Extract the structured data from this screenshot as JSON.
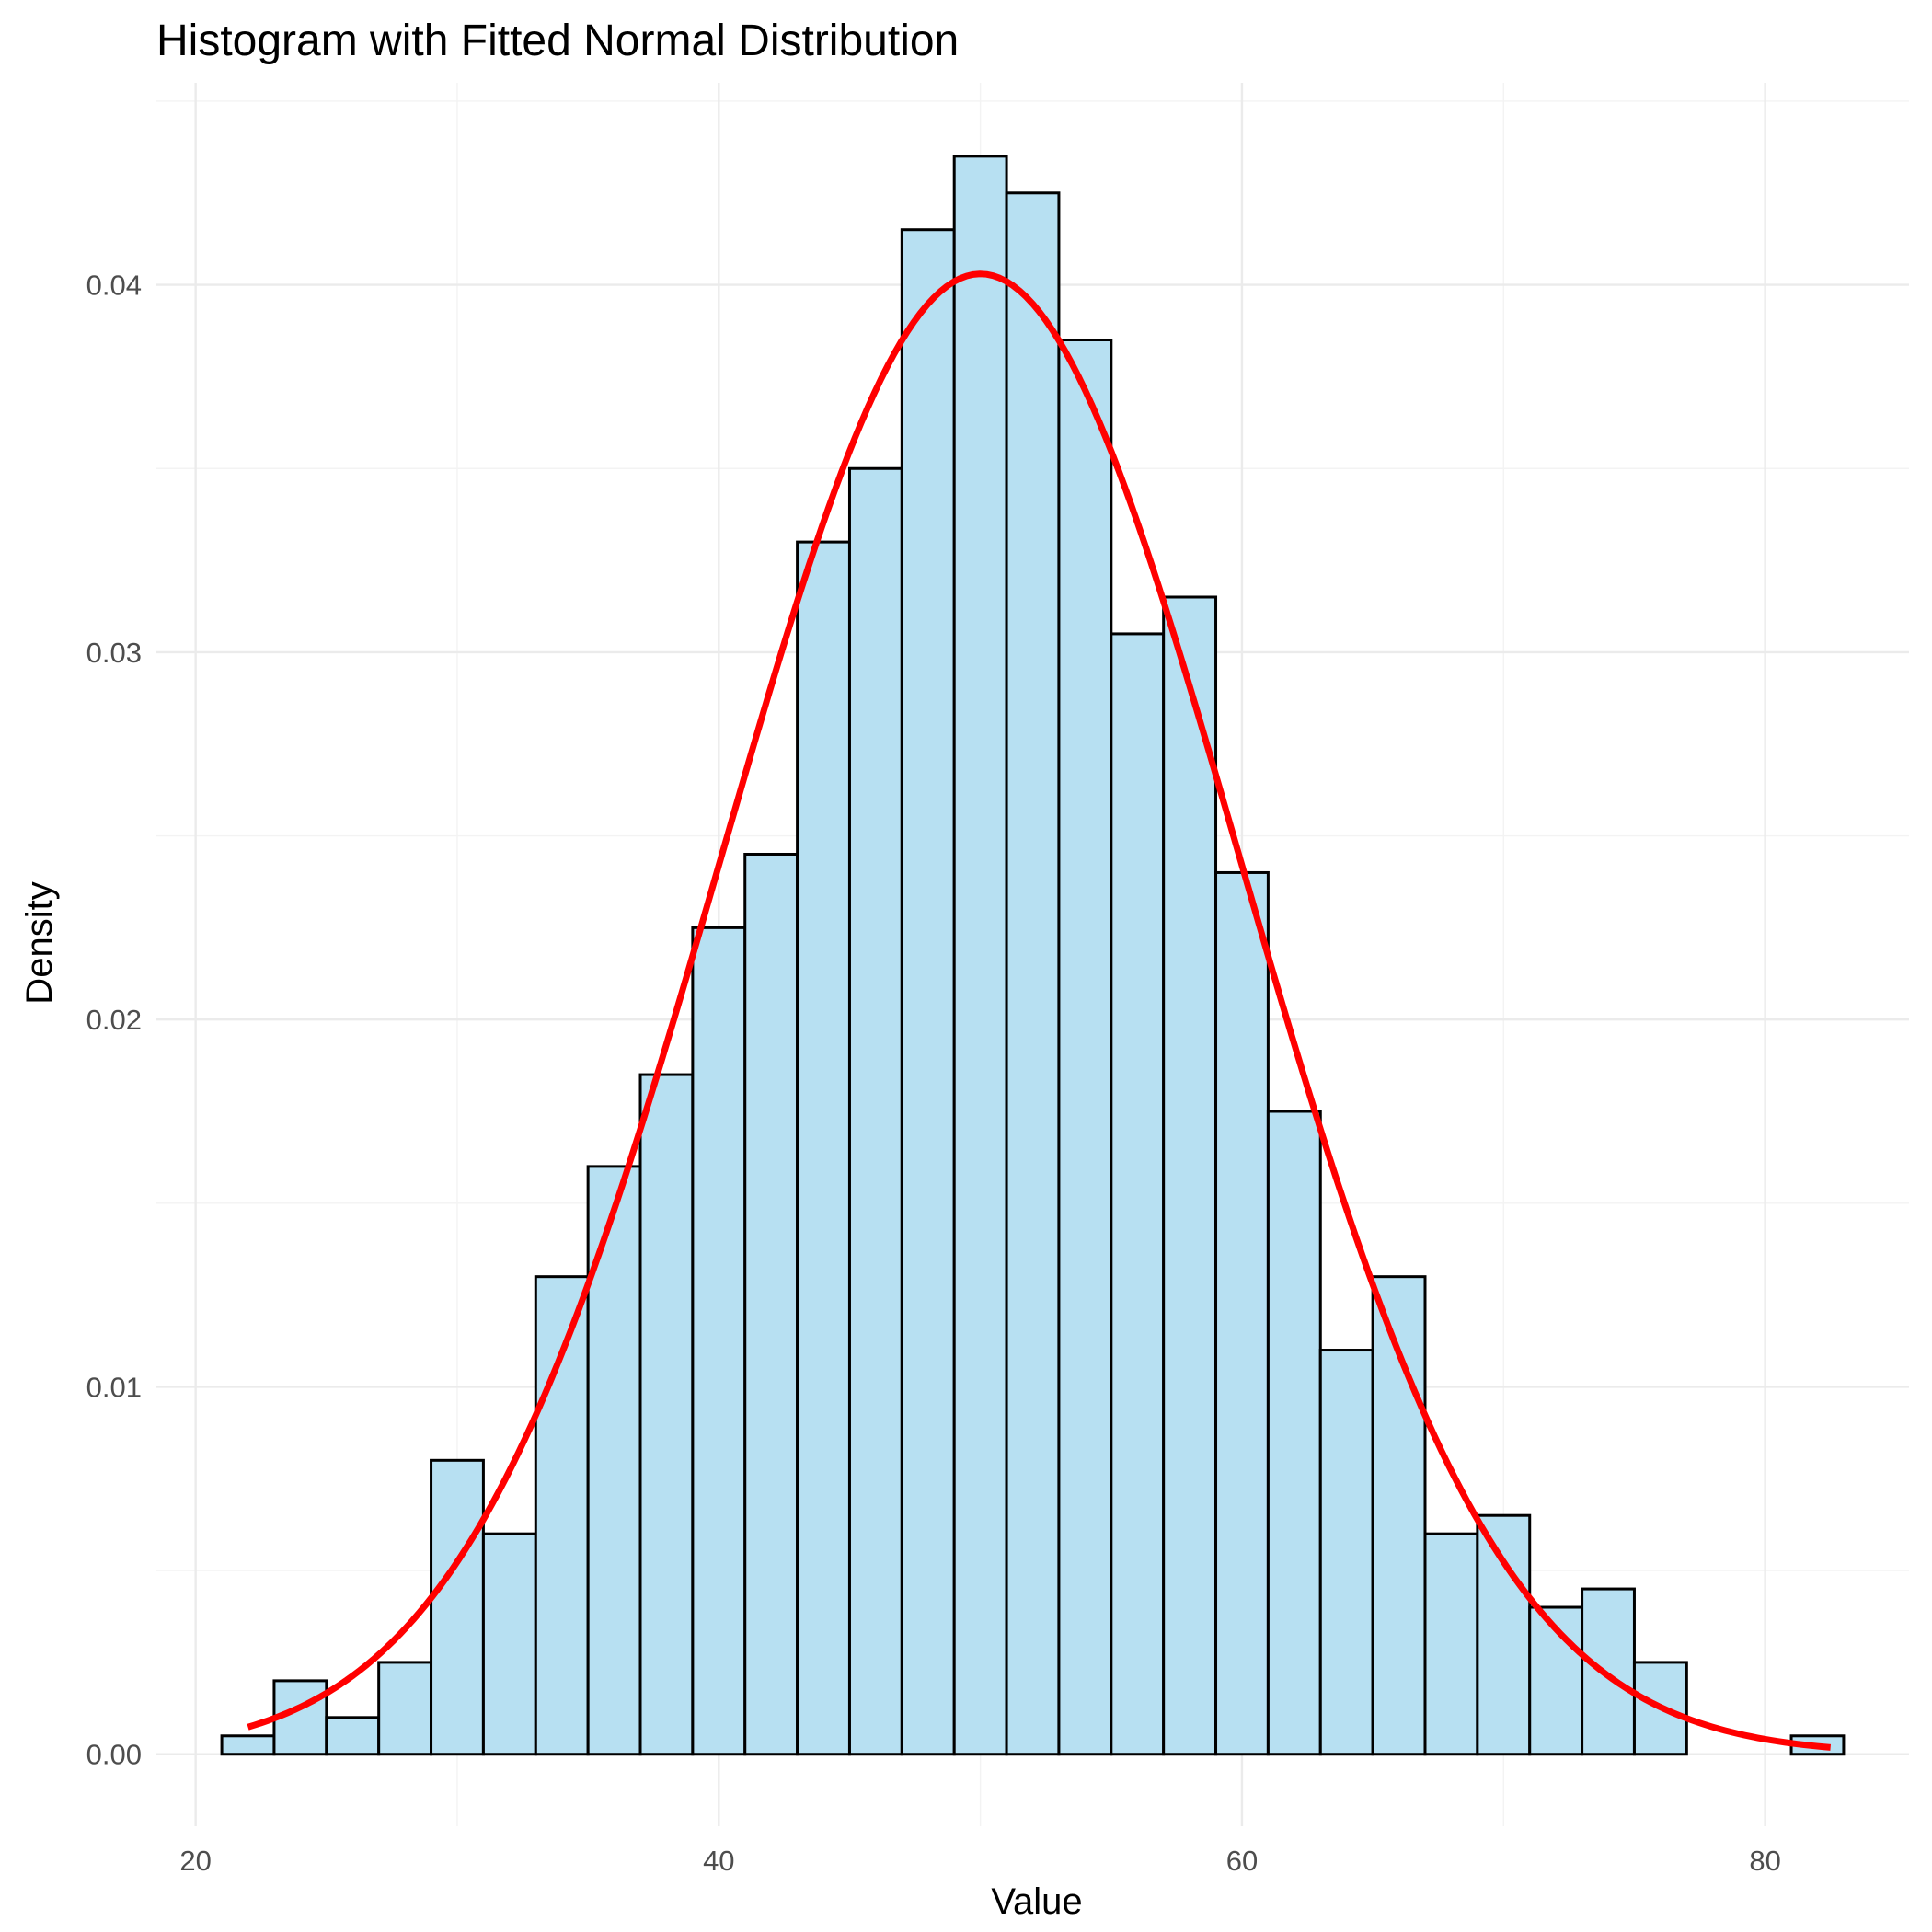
{
  "chart_data": {
    "type": "bar",
    "title": "Histogram with Fitted Normal Distribution",
    "xlabel": "Value",
    "ylabel": "Density",
    "xlim": [
      18.5,
      85.5
    ],
    "ylim": [
      -0.00196,
      0.0455
    ],
    "x_ticks": [
      20,
      40,
      60,
      80
    ],
    "x_tick_labels": [
      "20",
      "40",
      "60",
      "80"
    ],
    "y_ticks": [
      0.0,
      0.01,
      0.02,
      0.03,
      0.04
    ],
    "y_tick_labels": [
      "0.00",
      "0.01",
      "0.02",
      "0.03",
      "0.04"
    ],
    "grid": true,
    "bins": {
      "bin_width": 2,
      "bin_starts": [
        21,
        23,
        25,
        27,
        29,
        31,
        33,
        35,
        37,
        39,
        41,
        43,
        45,
        47,
        49,
        51,
        53,
        55,
        57,
        59,
        61,
        63,
        65,
        67,
        69,
        71,
        73,
        75,
        77,
        79,
        81
      ],
      "densities": [
        0.0005,
        0.002,
        0.001,
        0.0025,
        0.008,
        0.006,
        0.013,
        0.016,
        0.0185,
        0.0225,
        0.0245,
        0.033,
        0.035,
        0.0415,
        0.0435,
        0.0425,
        0.0385,
        0.0305,
        0.0315,
        0.024,
        0.0175,
        0.011,
        0.013,
        0.006,
        0.0065,
        0.004,
        0.0045,
        0.0025,
        0.0,
        0.0,
        0.0005
      ]
    },
    "fitted_normal": {
      "mean": 50.0,
      "sd": 9.9,
      "x_range": [
        22.0,
        82.5
      ]
    },
    "colors": {
      "bar_fill": "#b7e0f2",
      "bar_outline": "#000000",
      "curve": "#ff0000",
      "grid": "#ebebeb"
    }
  }
}
